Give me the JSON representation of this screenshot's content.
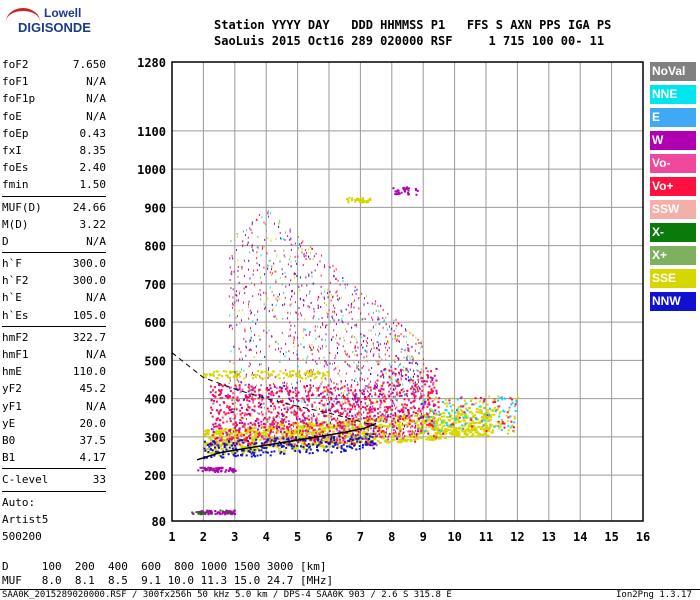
{
  "logo": {
    "top": "Lowell",
    "bottom": "DIGISONDE"
  },
  "header": {
    "line1": "Station YYYY DAY   DDD HHMMSS P1   FFS S AXN PPS IGA PS",
    "line2": "SaoLuis 2015 Oct16 289 020000 RSF     1 715 100 00- 11"
  },
  "params": {
    "group1": [
      {
        "label": "foF2",
        "value": "7.650"
      },
      {
        "label": "foF1",
        "value": "N/A"
      },
      {
        "label": "foF1p",
        "value": "N/A"
      },
      {
        "label": "foE",
        "value": "N/A"
      },
      {
        "label": "foEp",
        "value": "0.43"
      },
      {
        "label": "fxI",
        "value": "8.35"
      },
      {
        "label": "foEs",
        "value": "2.40"
      },
      {
        "label": "fmin",
        "value": "1.50"
      }
    ],
    "group2": [
      {
        "label": "MUF(D)",
        "value": "24.66"
      },
      {
        "label": "M(D)",
        "value": "3.22"
      },
      {
        "label": "D",
        "value": "N/A"
      }
    ],
    "group3": [
      {
        "label": "h`F",
        "value": "300.0"
      },
      {
        "label": "h`F2",
        "value": "300.0"
      },
      {
        "label": "h`E",
        "value": "N/A"
      },
      {
        "label": "h`Es",
        "value": "105.0"
      }
    ],
    "group4": [
      {
        "label": "hmF2",
        "value": "322.7"
      },
      {
        "label": "hmF1",
        "value": "N/A"
      },
      {
        "label": "hmE",
        "value": "110.0"
      },
      {
        "label": "yF2",
        "value": "45.2"
      },
      {
        "label": "yF1",
        "value": "N/A"
      },
      {
        "label": "yE",
        "value": "20.0"
      },
      {
        "label": "B0",
        "value": "37.5"
      },
      {
        "label": "B1",
        "value": "4.17"
      }
    ],
    "clevel": {
      "label": "C-level",
      "value": "33"
    },
    "auto": [
      "Auto:",
      "Artist5",
      "500200"
    ]
  },
  "legend": [
    {
      "label": "NoVal",
      "color": "#808080"
    },
    {
      "label": "NNE",
      "color": "#00e5ee"
    },
    {
      "label": "E",
      "color": "#3fa9f5"
    },
    {
      "label": "W",
      "color": "#b000b0"
    },
    {
      "label": "Vo-",
      "color": "#f0489a"
    },
    {
      "label": "Vo+",
      "color": "#ff1040"
    },
    {
      "label": "SSW",
      "color": "#f4b0a8"
    },
    {
      "label": "X-",
      "color": "#0a7a0a"
    },
    {
      "label": "X+",
      "color": "#7fb060"
    },
    {
      "label": "SSE",
      "color": "#d6d600"
    },
    {
      "label": "NNW",
      "color": "#1010d0"
    }
  ],
  "chart_data": {
    "type": "scatter",
    "xticks": [
      "1",
      "2",
      "3",
      "4",
      "5",
      "6",
      "7",
      "8",
      "9",
      "10",
      "11",
      "12",
      "13",
      "14",
      "15",
      "16"
    ],
    "yticks": [
      "80",
      "200",
      "300",
      "400",
      "500",
      "600",
      "700",
      "800",
      "900",
      "1000",
      "1100",
      "1280"
    ],
    "xlim": [
      1,
      16
    ],
    "ylim": [
      80,
      1280
    ],
    "grid": true,
    "profile_curve": {
      "x": [
        1.8,
        2.5,
        3.5,
        4.5,
        5.5,
        6.5,
        7.1,
        7.5
      ],
      "y": [
        240,
        258,
        272,
        285,
        298,
        312,
        322,
        335
      ]
    },
    "dashed_profile": {
      "x": [
        1.0,
        2.0,
        3.0,
        4.0,
        5.0,
        6.0,
        7.0,
        7.6
      ],
      "y": [
        520,
        455,
        425,
        400,
        380,
        362,
        340,
        325
      ]
    }
  },
  "footer": {
    "d_row": "D     100  200  400  600  800 1000 1500 3000 [km]",
    "muf_row": "MUF   8.0  8.1  8.5  9.1 10.0 11.3 15.0 24.7 [MHz]",
    "file_info": "SAA0K_2015289020000.RSF / 300fx256h 50 kHz 5.0 km / DPS-4 SAA0K 903 / 2.6 S 315.8 E",
    "version": "Ion2Png 1.3.17"
  }
}
